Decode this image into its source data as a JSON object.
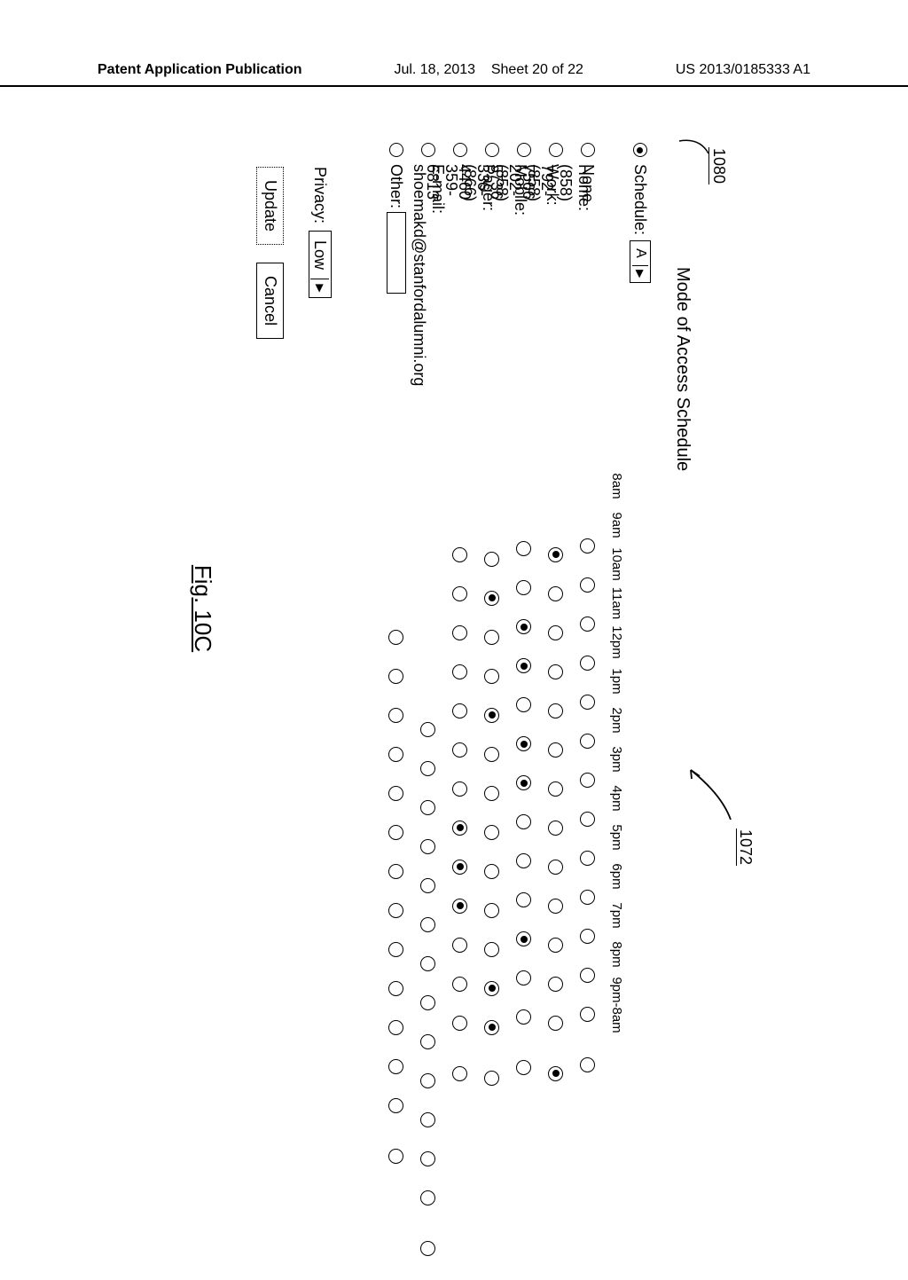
{
  "header": {
    "left": "Patent Application Publication",
    "date": "Jul. 18, 2013",
    "sheet": "Sheet 20 of 22",
    "pubno": "US 2013/0185333 A1"
  },
  "refs": {
    "r1": "1080",
    "r2": "1072"
  },
  "title": "Mode of Access Schedule",
  "schedule_label": "Schedule:",
  "schedule_value": "A",
  "time_cols": [
    "8am",
    "9am",
    "10am",
    "11am",
    "12pm",
    "1pm",
    "2pm",
    "3pm",
    "4pm",
    "5pm",
    "6pm",
    "7pm",
    "8pm",
    "9pm-8am"
  ],
  "rows": [
    {
      "label": "None",
      "sel": [
        0,
        0,
        0,
        0,
        0,
        0,
        0,
        0,
        0,
        0,
        0,
        0,
        0,
        0
      ]
    },
    {
      "label": "Home: (858) 792-7566",
      "sel": [
        1,
        0,
        0,
        0,
        0,
        0,
        0,
        0,
        0,
        0,
        0,
        0,
        0,
        1
      ]
    },
    {
      "label": "Work: (858) 202-5736",
      "sel": [
        0,
        0,
        1,
        1,
        0,
        1,
        1,
        0,
        0,
        0,
        1,
        0,
        0,
        0
      ]
    },
    {
      "label": "Mobile: (858) 336-4460",
      "sel": [
        0,
        1,
        0,
        0,
        1,
        0,
        0,
        0,
        0,
        0,
        0,
        1,
        1,
        0
      ]
    },
    {
      "label": "Pager: (866) 359-6813",
      "sel": [
        0,
        0,
        0,
        0,
        0,
        0,
        0,
        1,
        1,
        1,
        0,
        0,
        0,
        0
      ]
    },
    {
      "label": "E-mail: shoemakd@stanfordalumni.org",
      "sel": [
        0,
        0,
        0,
        0,
        0,
        0,
        0,
        0,
        0,
        0,
        0,
        0,
        0,
        0
      ]
    },
    {
      "label": "Other:",
      "sel": [
        0,
        0,
        0,
        0,
        0,
        0,
        0,
        0,
        0,
        0,
        0,
        0,
        0,
        0
      ],
      "has_input": true
    }
  ],
  "privacy_label": "Privacy:",
  "privacy_value": "Low",
  "buttons": {
    "update": "Update",
    "cancel": "Cancel"
  },
  "figure_label": "Fig. 10C"
}
